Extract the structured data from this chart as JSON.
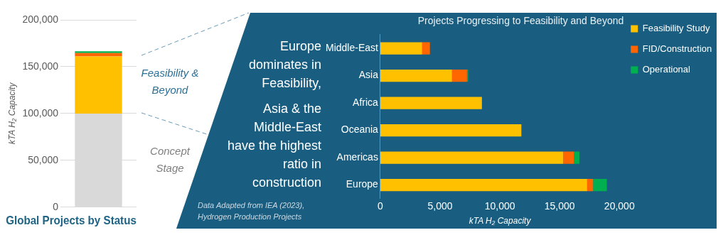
{
  "chart_data": [
    {
      "type": "bar",
      "title": "Global Projects by Status",
      "ylabel": "kTA H₂ Capacity",
      "categories": [
        null
      ],
      "stacked": true,
      "series": [
        {
          "color": "#d9d9d9",
          "values": [
            100000
          ]
        },
        {
          "color": "#ffc000",
          "values": [
            61000
          ]
        },
        {
          "color": "#ff6600",
          "values": [
            3500
          ]
        },
        {
          "color": "#00b050",
          "values": [
            2000
          ]
        }
      ],
      "ylim": [
        0,
        200000
      ],
      "yticks": [
        {
          "value": 0,
          "label": "0"
        },
        {
          "value": 50000,
          "label": "50,000"
        },
        {
          "value": 100000,
          "label": "100,000"
        },
        {
          "value": 150000,
          "label": "150,000"
        },
        {
          "value": 200000,
          "label": "200,000"
        }
      ],
      "grid": "y",
      "tick_labels": "y",
      "legend": false,
      "annotations": [
        "Feasibility & Beyond",
        "Concept Stage"
      ]
    },
    {
      "type": "bar",
      "title": "Projects Progressing to Feasibility and Beyond",
      "xlabel": "kTA H₂ Capacity",
      "orientation": "horizontal",
      "stacked": true,
      "categories": [
        "Middle-East",
        "Asia",
        "Africa",
        "Oceania",
        "Americas",
        "Europe"
      ],
      "series": [
        {
          "name": "Feasibility Study",
          "color": "#ffc000",
          "values": [
            3500,
            6000,
            8500,
            11800,
            15300,
            17300
          ]
        },
        {
          "name": "FID/Construction",
          "color": "#ff6600",
          "values": [
            650,
            1250,
            0,
            0,
            900,
            500
          ]
        },
        {
          "name": "Operational",
          "color": "#00b050",
          "values": [
            0,
            100,
            0,
            0,
            450,
            1150
          ]
        }
      ],
      "xlim": [
        0,
        20000
      ],
      "xticks": [
        {
          "value": 0,
          "label": "0"
        },
        {
          "value": 5000,
          "label": "5,000"
        },
        {
          "value": 10000,
          "label": "10,000"
        },
        {
          "value": 15000,
          "label": "15,000"
        },
        {
          "value": 20000,
          "label": "20,000"
        }
      ],
      "grid": false,
      "legend": "top right",
      "annotations": [
        "Europe dominates in Feasibility,",
        "Asia & the Middle-East have the highest ratio in construction",
        "Data Adapted from IEA (2023), Hydrogen Production Projects"
      ]
    }
  ]
}
